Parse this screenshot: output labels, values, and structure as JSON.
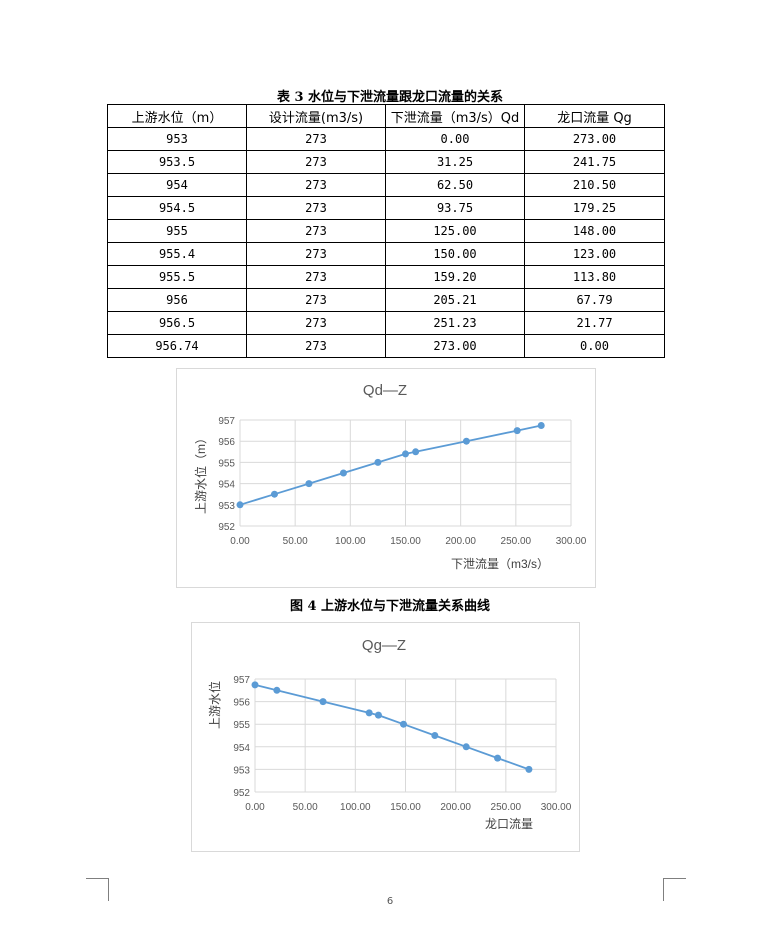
{
  "table": {
    "caption": "表 3   水位与下泄流量跟龙口流量的关系",
    "headers": [
      "上游水位（m）",
      "设计流量(m3/s)",
      "下泄流量（m3/s）Qd",
      "龙口流量 Qg"
    ],
    "rows": [
      [
        "953",
        "273",
        "0.00",
        "273.00"
      ],
      [
        "953.5",
        "273",
        "31.25",
        "241.75"
      ],
      [
        "954",
        "273",
        "62.50",
        "210.50"
      ],
      [
        "954.5",
        "273",
        "93.75",
        "179.25"
      ],
      [
        "955",
        "273",
        "125.00",
        "148.00"
      ],
      [
        "955.4",
        "273",
        "150.00",
        "123.00"
      ],
      [
        "955.5",
        "273",
        "159.20",
        "113.80"
      ],
      [
        "956",
        "273",
        "205.21",
        "67.79"
      ],
      [
        "956.5",
        "273",
        "251.23",
        "21.77"
      ],
      [
        "956.74",
        "273",
        "273.00",
        "0.00"
      ]
    ]
  },
  "figure4_caption": "图 4   上游水位与下泄流量关系曲线",
  "chart_data": [
    {
      "type": "scatter",
      "title": "Qd—Z",
      "xlabel": "下泄流量（m3/s）",
      "ylabel": "上游水位（m）",
      "xlim": [
        0,
        300
      ],
      "ylim": [
        952,
        957
      ],
      "xticks": [
        "0.00",
        "50.00",
        "100.00",
        "150.00",
        "200.00",
        "250.00",
        "300.00"
      ],
      "yticks": [
        "952",
        "953",
        "954",
        "955",
        "956",
        "957"
      ],
      "x": [
        0,
        31.25,
        62.5,
        93.75,
        125,
        150,
        159.2,
        205.21,
        251.23,
        273
      ],
      "y": [
        953,
        953.5,
        954,
        954.5,
        955,
        955.4,
        955.5,
        956,
        956.5,
        956.74
      ],
      "color": "#5b9bd5"
    },
    {
      "type": "scatter",
      "title": "Qg—Z",
      "xlabel": "龙口流量",
      "ylabel": "上游水位",
      "xlim": [
        0,
        300
      ],
      "ylim": [
        952,
        957
      ],
      "xticks": [
        "0.00",
        "50.00",
        "100.00",
        "150.00",
        "200.00",
        "250.00",
        "300.00"
      ],
      "yticks": [
        "952",
        "953",
        "954",
        "955",
        "956",
        "957"
      ],
      "x": [
        273,
        241.75,
        210.5,
        179.25,
        148,
        123,
        113.8,
        67.79,
        21.77,
        0
      ],
      "y": [
        953,
        953.5,
        954,
        954.5,
        955,
        955.4,
        955.5,
        956,
        956.5,
        956.74
      ],
      "color": "#5b9bd5"
    }
  ],
  "page_number": "6"
}
